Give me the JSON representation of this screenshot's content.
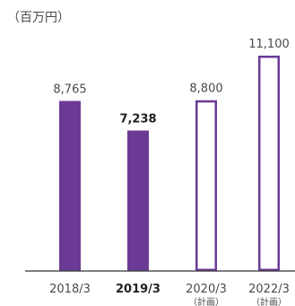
{
  "chart_data": {
    "type": "bar",
    "unit_label": "（百万円）",
    "categories": [
      "2018/3",
      "2019/3",
      "2020/3",
      "2022/3"
    ],
    "category_notes": [
      "",
      "",
      "（計画）",
      "（計画）"
    ],
    "values": [
      8765,
      7238,
      8800,
      11100
    ],
    "value_labels": [
      "8,765",
      "7,238",
      "8,800",
      "11,100"
    ],
    "bar_style": [
      "filled",
      "filled",
      "outline",
      "outline"
    ],
    "emphasized": [
      false,
      true,
      false,
      false
    ],
    "ylim": [
      0,
      11100
    ],
    "grid": false,
    "colors": {
      "bar": "#6b3a97",
      "axis": "#333333",
      "text": "#4a4a4a"
    }
  }
}
